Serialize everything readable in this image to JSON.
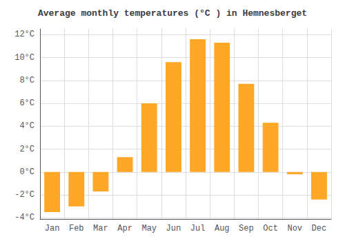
{
  "chart_data": {
    "type": "bar",
    "title": "Average monthly temperatures (°C ) in Hemnesberget",
    "categories": [
      "Jan",
      "Feb",
      "Mar",
      "Apr",
      "May",
      "Jun",
      "Jul",
      "Aug",
      "Sep",
      "Oct",
      "Nov",
      "Dec"
    ],
    "values": [
      -3.5,
      -3.0,
      -1.7,
      1.3,
      6.0,
      9.6,
      11.6,
      11.3,
      7.7,
      4.3,
      -0.2,
      -2.4
    ],
    "color": "#FFA726",
    "ylim": [
      -4.1,
      12.5
    ],
    "yticks": [
      {
        "value": -4,
        "label": "-4°C"
      },
      {
        "value": -2,
        "label": "-2°C"
      },
      {
        "value": 0,
        "label": "0°C"
      },
      {
        "value": 2,
        "label": "2°C"
      },
      {
        "value": 4,
        "label": "4°C"
      },
      {
        "value": 6,
        "label": "6°C"
      },
      {
        "value": 8,
        "label": "8°C"
      },
      {
        "value": 10,
        "label": "10°C"
      },
      {
        "value": 12,
        "label": "12°C"
      }
    ],
    "grid": true
  }
}
